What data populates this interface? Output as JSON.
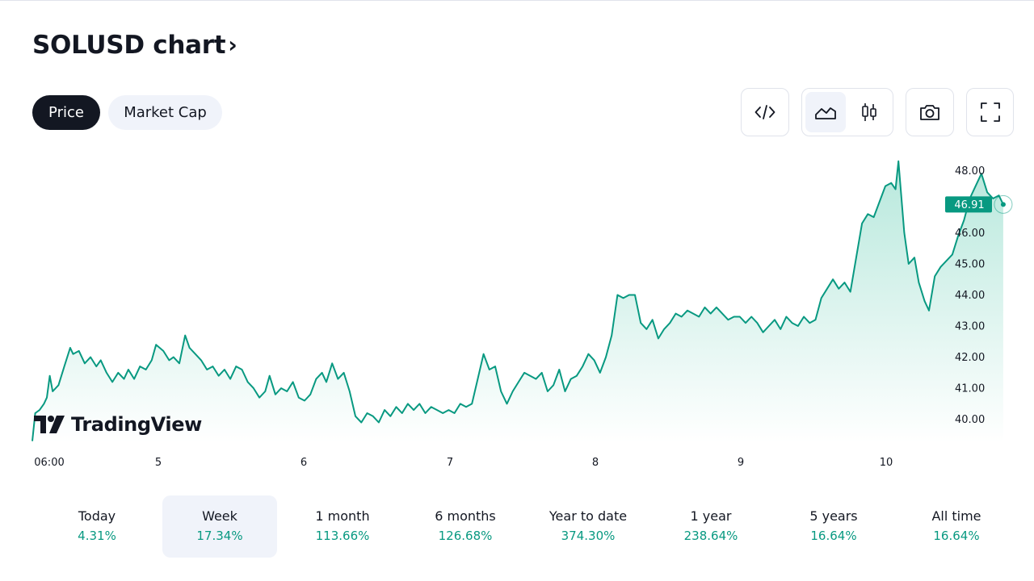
{
  "title": "SOLUSD chart",
  "title_chevron": "›",
  "tabs": [
    {
      "label": "Price",
      "active": true
    },
    {
      "label": "Market Cap",
      "active": false
    }
  ],
  "toolbar": {
    "embed_icon": "code-icon",
    "area_icon": "area-chart-icon",
    "candle_icon": "candlestick-icon",
    "snapshot_icon": "camera-icon",
    "fullscreen_icon": "fullscreen-icon"
  },
  "watermark": {
    "text": "TradingView",
    "icon": "tradingview-logo-icon"
  },
  "colors": {
    "line": "#089981",
    "fill_top": "#b7e8dc",
    "fill_bottom": "#ffffff",
    "label_bg": "#089981",
    "positive": "#089981",
    "dark": "#131722"
  },
  "chart_data": {
    "type": "area",
    "x_tick_labels": [
      "06:00",
      "5",
      "6",
      "7",
      "8",
      "9",
      "10"
    ],
    "y_tick_labels": [
      "40.00",
      "41.00",
      "42.00",
      "43.00",
      "44.00",
      "45.00",
      "46.00",
      "48.00"
    ],
    "y_ticks": [
      40,
      41,
      42,
      43,
      44,
      45,
      46,
      48
    ],
    "ylim": [
      39.2,
      48.8
    ],
    "x_range_days": [
      4.0,
      10.4
    ],
    "last_price": 46.91,
    "last_price_label": "46.91",
    "series": [
      {
        "values": [
          [
            4.0,
            39.3
          ],
          [
            4.02,
            40.2
          ],
          [
            4.05,
            40.3
          ],
          [
            4.08,
            40.5
          ],
          [
            4.1,
            40.7
          ],
          [
            4.12,
            41.4
          ],
          [
            4.14,
            40.9
          ],
          [
            4.18,
            41.1
          ],
          [
            4.22,
            41.7
          ],
          [
            4.26,
            42.3
          ],
          [
            4.28,
            42.1
          ],
          [
            4.32,
            42.2
          ],
          [
            4.36,
            41.8
          ],
          [
            4.4,
            42.0
          ],
          [
            4.44,
            41.7
          ],
          [
            4.47,
            41.9
          ],
          [
            4.51,
            41.5
          ],
          [
            4.55,
            41.2
          ],
          [
            4.59,
            41.5
          ],
          [
            4.63,
            41.3
          ],
          [
            4.66,
            41.6
          ],
          [
            4.7,
            41.3
          ],
          [
            4.74,
            41.7
          ],
          [
            4.78,
            41.6
          ],
          [
            4.82,
            41.9
          ],
          [
            4.85,
            42.4
          ],
          [
            4.9,
            42.2
          ],
          [
            4.94,
            41.9
          ],
          [
            4.97,
            42.0
          ],
          [
            5.01,
            41.8
          ],
          [
            5.05,
            42.7
          ],
          [
            5.08,
            42.3
          ],
          [
            5.12,
            42.1
          ],
          [
            5.16,
            41.9
          ],
          [
            5.2,
            41.6
          ],
          [
            5.24,
            41.7
          ],
          [
            5.28,
            41.4
          ],
          [
            5.32,
            41.6
          ],
          [
            5.36,
            41.3
          ],
          [
            5.4,
            41.7
          ],
          [
            5.44,
            41.6
          ],
          [
            5.48,
            41.2
          ],
          [
            5.52,
            41.0
          ],
          [
            5.56,
            40.7
          ],
          [
            5.6,
            40.9
          ],
          [
            5.63,
            41.4
          ],
          [
            5.67,
            40.8
          ],
          [
            5.71,
            41.0
          ],
          [
            5.75,
            40.9
          ],
          [
            5.79,
            41.2
          ],
          [
            5.83,
            40.7
          ],
          [
            5.87,
            40.6
          ],
          [
            5.91,
            40.8
          ],
          [
            5.95,
            41.3
          ],
          [
            5.99,
            41.5
          ],
          [
            6.02,
            41.2
          ],
          [
            6.06,
            41.8
          ],
          [
            6.1,
            41.3
          ],
          [
            6.14,
            41.5
          ],
          [
            6.18,
            40.9
          ],
          [
            6.22,
            40.1
          ],
          [
            6.26,
            39.9
          ],
          [
            6.3,
            40.2
          ],
          [
            6.34,
            40.1
          ],
          [
            6.38,
            39.9
          ],
          [
            6.42,
            40.3
          ],
          [
            6.46,
            40.1
          ],
          [
            6.5,
            40.4
          ],
          [
            6.54,
            40.2
          ],
          [
            6.58,
            40.5
          ],
          [
            6.62,
            40.3
          ],
          [
            6.66,
            40.5
          ],
          [
            6.7,
            40.2
          ],
          [
            6.74,
            40.4
          ],
          [
            6.78,
            40.3
          ],
          [
            6.82,
            40.2
          ],
          [
            6.86,
            40.3
          ],
          [
            6.9,
            40.2
          ],
          [
            6.94,
            40.5
          ],
          [
            6.98,
            40.4
          ],
          [
            7.02,
            40.5
          ],
          [
            7.06,
            41.3
          ],
          [
            7.1,
            42.1
          ],
          [
            7.14,
            41.6
          ],
          [
            7.18,
            41.7
          ],
          [
            7.22,
            40.9
          ],
          [
            7.26,
            40.5
          ],
          [
            7.3,
            40.9
          ],
          [
            7.34,
            41.2
          ],
          [
            7.38,
            41.5
          ],
          [
            7.42,
            41.4
          ],
          [
            7.46,
            41.3
          ],
          [
            7.5,
            41.5
          ],
          [
            7.54,
            40.9
          ],
          [
            7.58,
            41.1
          ],
          [
            7.62,
            41.6
          ],
          [
            7.66,
            40.9
          ],
          [
            7.7,
            41.3
          ],
          [
            7.74,
            41.4
          ],
          [
            7.78,
            41.7
          ],
          [
            7.82,
            42.1
          ],
          [
            7.86,
            41.9
          ],
          [
            7.9,
            41.5
          ],
          [
            7.94,
            42.0
          ],
          [
            7.98,
            42.7
          ],
          [
            8.02,
            44.0
          ],
          [
            8.06,
            43.9
          ],
          [
            8.1,
            44.0
          ],
          [
            8.14,
            44.0
          ],
          [
            8.18,
            43.1
          ],
          [
            8.22,
            42.9
          ],
          [
            8.26,
            43.2
          ],
          [
            8.3,
            42.6
          ],
          [
            8.34,
            42.9
          ],
          [
            8.38,
            43.1
          ],
          [
            8.42,
            43.4
          ],
          [
            8.46,
            43.3
          ],
          [
            8.5,
            43.5
          ],
          [
            8.54,
            43.4
          ],
          [
            8.58,
            43.3
          ],
          [
            8.62,
            43.6
          ],
          [
            8.66,
            43.4
          ],
          [
            8.7,
            43.6
          ],
          [
            8.74,
            43.4
          ],
          [
            8.78,
            43.2
          ],
          [
            8.82,
            43.3
          ],
          [
            8.86,
            43.3
          ],
          [
            8.9,
            43.1
          ],
          [
            8.94,
            43.3
          ],
          [
            8.98,
            43.1
          ],
          [
            9.02,
            42.8
          ],
          [
            9.06,
            43.0
          ],
          [
            9.1,
            43.2
          ],
          [
            9.14,
            42.9
          ],
          [
            9.18,
            43.3
          ],
          [
            9.22,
            43.1
          ],
          [
            9.26,
            43.0
          ],
          [
            9.3,
            43.3
          ],
          [
            9.34,
            43.1
          ],
          [
            9.38,
            43.2
          ],
          [
            9.42,
            43.9
          ],
          [
            9.46,
            44.2
          ],
          [
            9.5,
            44.5
          ],
          [
            9.54,
            44.2
          ],
          [
            9.58,
            44.4
          ],
          [
            9.62,
            44.1
          ],
          [
            9.66,
            45.2
          ],
          [
            9.7,
            46.3
          ],
          [
            9.74,
            46.6
          ],
          [
            9.78,
            46.5
          ],
          [
            9.82,
            47.0
          ],
          [
            9.86,
            47.5
          ],
          [
            9.9,
            47.6
          ],
          [
            9.93,
            47.4
          ],
          [
            9.95,
            48.3
          ],
          [
            9.99,
            46.0
          ],
          [
            10.02,
            45.0
          ],
          [
            10.06,
            45.2
          ],
          [
            10.09,
            44.4
          ],
          [
            10.13,
            43.8
          ],
          [
            10.16,
            43.5
          ],
          [
            10.2,
            44.6
          ],
          [
            10.24,
            44.9
          ],
          [
            10.28,
            45.1
          ],
          [
            10.32,
            45.3
          ],
          [
            10.36,
            45.9
          ],
          [
            10.4,
            46.4
          ],
          [
            10.44,
            47.1
          ],
          [
            10.48,
            47.5
          ],
          [
            10.52,
            47.9
          ],
          [
            10.56,
            47.3
          ],
          [
            10.6,
            47.1
          ],
          [
            10.64,
            47.2
          ],
          [
            10.67,
            46.91
          ]
        ]
      }
    ]
  },
  "ranges": [
    {
      "label": "Today",
      "value": "4.31%",
      "active": false
    },
    {
      "label": "Week",
      "value": "17.34%",
      "active": true
    },
    {
      "label": "1 month",
      "value": "113.66%",
      "active": false
    },
    {
      "label": "6 months",
      "value": "126.68%",
      "active": false
    },
    {
      "label": "Year to date",
      "value": "374.30%",
      "active": false
    },
    {
      "label": "1 year",
      "value": "238.64%",
      "active": false
    },
    {
      "label": "5 years",
      "value": "16.64%",
      "active": false
    },
    {
      "label": "All time",
      "value": "16.64%",
      "active": false
    }
  ]
}
